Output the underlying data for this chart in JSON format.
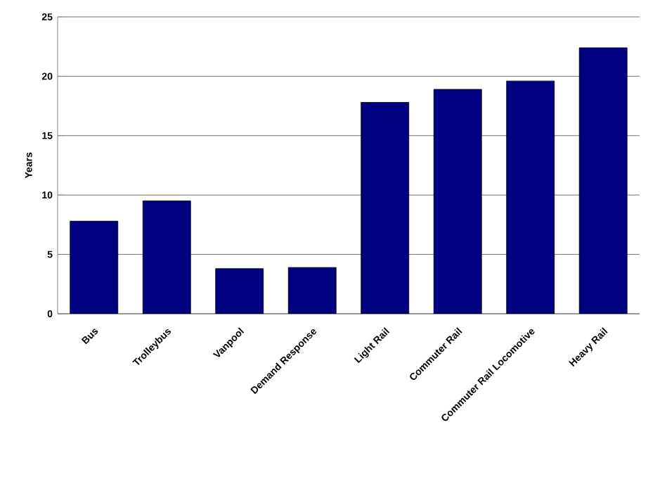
{
  "chart_data": {
    "type": "bar",
    "ylabel": "Years",
    "categories": [
      "Bus",
      "Trolleybus",
      "Vanpool",
      "Demand Response",
      "Light Rail",
      "Commuter Rail",
      "Commuter Rail Locomotive",
      "Heavy Rail"
    ],
    "values": [
      7.8,
      9.5,
      3.8,
      3.9,
      17.8,
      18.9,
      19.6,
      22.4
    ],
    "color": "#000080",
    "ylim": [
      0,
      25
    ],
    "yticks": [
      0,
      5,
      10,
      15,
      20,
      25
    ],
    "grid": "y"
  }
}
